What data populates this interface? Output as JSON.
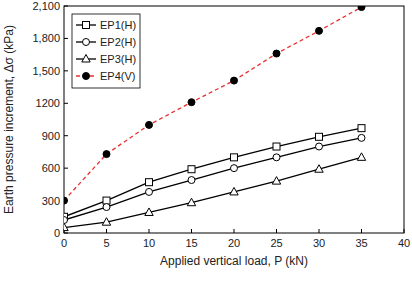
{
  "chart_data": {
    "type": "line",
    "x_label": "Applied vertical load, P (kN)",
    "y_label": "Earth pressure increment, Δσ (kPa)",
    "x": [
      0,
      5,
      10,
      15,
      20,
      25,
      30,
      35
    ],
    "series": [
      {
        "name": "EP1(H)",
        "color": "#000000",
        "marker": "square",
        "line_style": "solid",
        "values": [
          150,
          300,
          470,
          590,
          700,
          800,
          890,
          970
        ]
      },
      {
        "name": "EP2(H)",
        "color": "#000000",
        "marker": "circle",
        "line_style": "solid",
        "values": [
          120,
          240,
          380,
          490,
          600,
          700,
          800,
          880
        ]
      },
      {
        "name": "EP3(H)",
        "color": "#000000",
        "marker": "triangle",
        "line_style": "solid",
        "values": [
          50,
          100,
          190,
          280,
          380,
          480,
          590,
          700
        ]
      },
      {
        "name": "EP4(V)",
        "color": "#e8312f",
        "marker": "filled_circle",
        "line_style": "dashed",
        "values": [
          300,
          730,
          1000,
          1210,
          1410,
          1660,
          1870,
          2090
        ]
      }
    ],
    "xlim": [
      0,
      40
    ],
    "xticks": [
      0,
      5,
      10,
      15,
      20,
      25,
      30,
      35,
      40
    ],
    "ylim": [
      0,
      2100
    ],
    "yticks": [
      0,
      300,
      600,
      900,
      1200,
      {
        "value": 1500,
        "label": "1,500"
      },
      {
        "value": 1800,
        "label": "1,800"
      },
      {
        "value": 2100,
        "label": "2,100"
      }
    ],
    "legend": "top-left",
    "grid": false
  }
}
